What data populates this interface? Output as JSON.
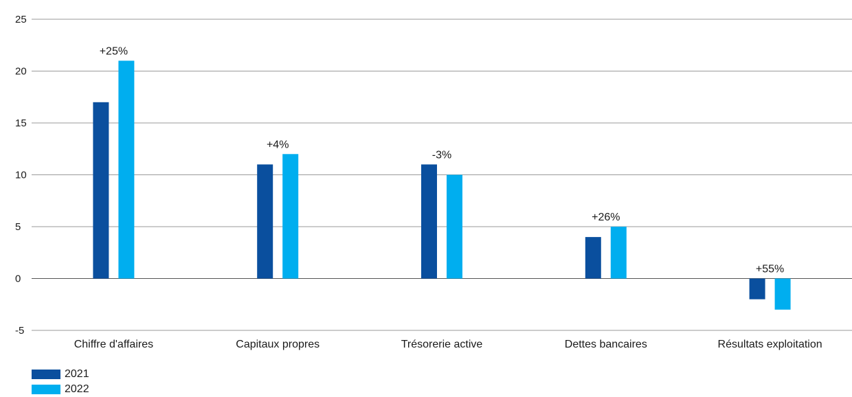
{
  "chart_data": {
    "type": "bar",
    "categories": [
      "Chiffre d'affaires",
      "Capitaux propres",
      "Trésorerie active",
      "Dettes bancaires",
      "Résultats exploitation"
    ],
    "series": [
      {
        "name": "2021",
        "color": "#0a4f9e",
        "values": [
          17,
          11,
          11,
          4,
          -2
        ]
      },
      {
        "name": "2022",
        "color": "#00aeef",
        "values": [
          21,
          12,
          10,
          5,
          -3
        ]
      }
    ],
    "annotations": [
      "+25%",
      "+4%",
      "-3%",
      "+26%",
      "+55%"
    ],
    "ylim": [
      -5,
      25
    ],
    "yticks": [
      25,
      20,
      15,
      10,
      5,
      0,
      -5
    ],
    "grid": true,
    "legend_position": "bottom-left"
  }
}
